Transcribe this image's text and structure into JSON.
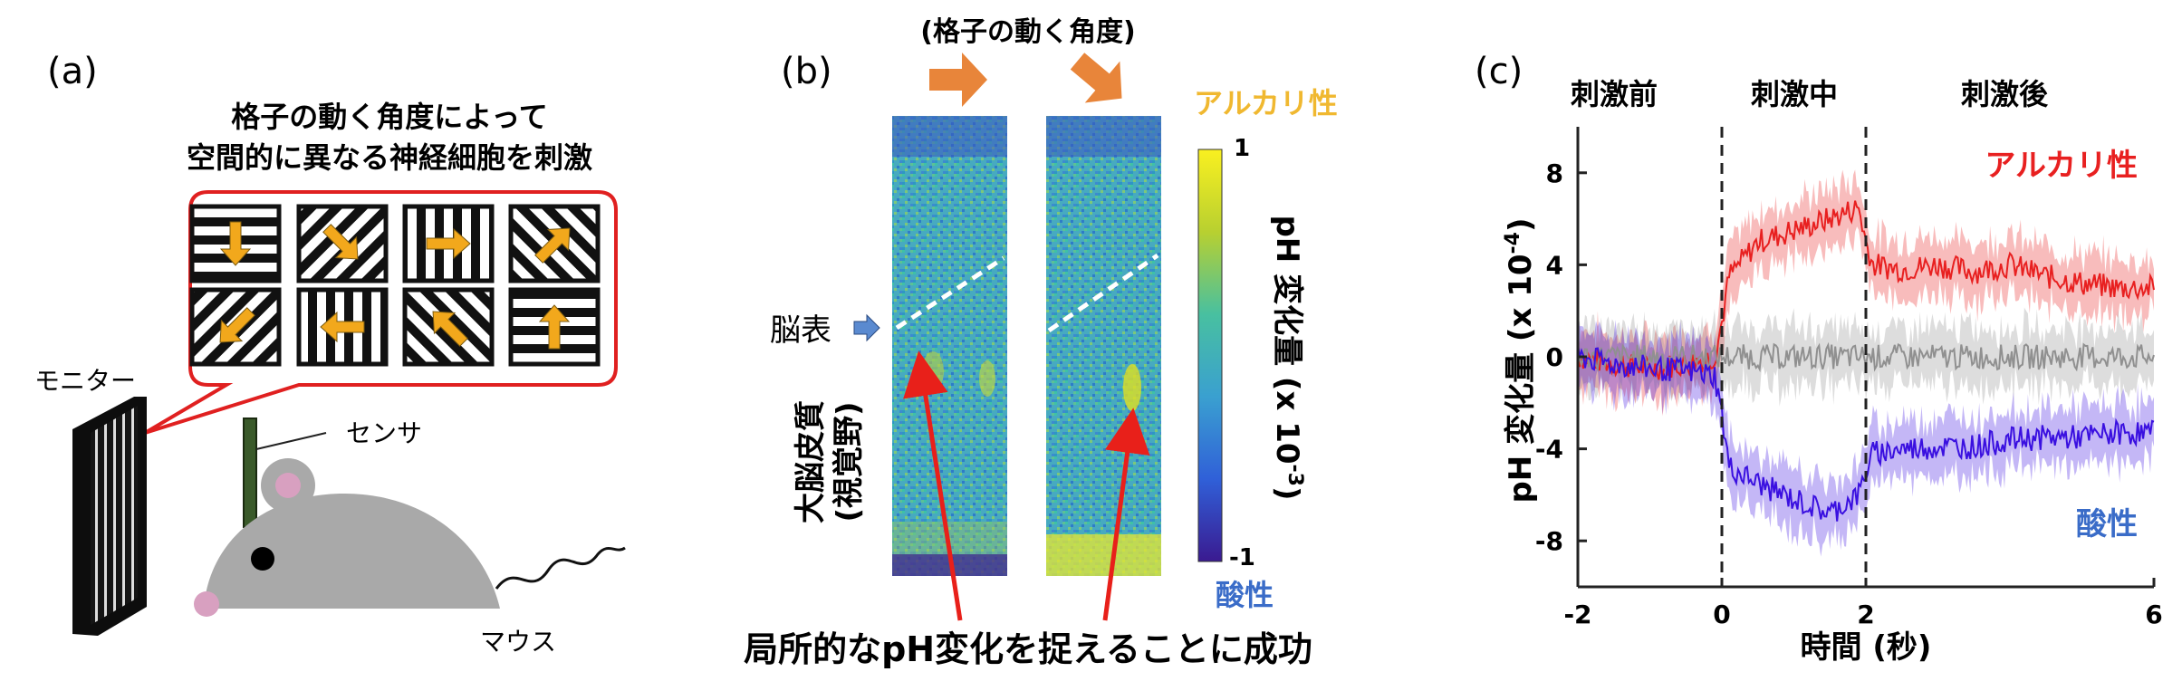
{
  "panel_a": {
    "letter": "(a)",
    "caption_line1": "格子の動く角度によって",
    "caption_line2": "空間的に異なる神経細胞を刺激",
    "monitor_label": "モニター",
    "sensor_label": "センサ",
    "mouse_label": "マウス",
    "grating_arrow_directions": [
      "down",
      "down-right",
      "right",
      "up-right",
      "down-left",
      "left",
      "up-left",
      "up"
    ],
    "colors": {
      "arrow": "#f2a81c",
      "bubble_border": "#e02020",
      "mouse_body": "#a9a9a9",
      "mouse_pink": "#d8a0c0",
      "sensor": "#3a5a2a"
    }
  },
  "panel_b": {
    "letter": "(b)",
    "header": "(格子の動く角度)",
    "alkaline_label": "アルカリ性",
    "acid_label": "酸性",
    "colorbar_top": "1",
    "colorbar_bottom": "-1",
    "colorbar_title": "pH 変化量 (x 10",
    "colorbar_exp": "-3",
    "colorbar_close": ")",
    "brain_surface_label": "脳表",
    "cortex_label_line1": "大脳皮質",
    "cortex_label_line2": "(視覚野)",
    "bottom_caption": "局所的なpH変化を捉えることに成功",
    "colors": {
      "direction_arrow": "#e8853a",
      "alkaline": "#f0b830",
      "acid": "#3a6cc8",
      "pointer": "#e8201a",
      "surface_arrow": "#5a8ad0"
    }
  },
  "panel_c": {
    "letter": "(c)",
    "phase_before": "刺激前",
    "phase_during": "刺激中",
    "phase_after": "刺激後",
    "alkaline_label": "アルカリ性",
    "acid_label": "酸性",
    "colors": {
      "alkaline": "#e82020",
      "acid": "#3a10e0",
      "control": "#909090",
      "acid_label": "#3a6cc8"
    }
  },
  "chart_data": {
    "type": "line",
    "xlabel": "時間 (秒)",
    "ylabel": "pH 変化量 (x 10",
    "ylabel_exp": "-4",
    "ylabel_close": ")",
    "xlim": [
      -2,
      6
    ],
    "ylim": [
      -10,
      10
    ],
    "x_ticks": [
      -2,
      0,
      2,
      6
    ],
    "y_ticks": [
      8,
      4,
      0,
      -4,
      -8
    ],
    "stimulus_lines": [
      0,
      2
    ],
    "series": [
      {
        "name": "アルカリ性",
        "color": "#e82020",
        "x": [
          -2,
          -1.5,
          -1,
          -0.5,
          -0.1,
          0,
          0.1,
          0.5,
          1,
          1.5,
          1.9,
          2,
          2.1,
          2.5,
          3,
          3.5,
          4,
          4.5,
          5,
          5.5,
          6
        ],
        "y": [
          0,
          -0.3,
          -0.5,
          -0.3,
          0,
          1.5,
          3.5,
          5,
          5.5,
          6,
          6.5,
          5,
          4,
          3.8,
          4,
          3.7,
          4,
          3.5,
          3.2,
          3,
          3
        ]
      },
      {
        "name": "",
        "color": "#909090",
        "x": [
          -2,
          -1,
          0,
          1,
          2,
          3,
          4,
          5,
          6
        ],
        "y": [
          0,
          0,
          0,
          0,
          0,
          0,
          0,
          0,
          0
        ]
      },
      {
        "name": "酸性",
        "color": "#3a10e0",
        "x": [
          -2,
          -1.5,
          -1,
          -0.5,
          -0.1,
          0,
          0.1,
          0.5,
          1,
          1.5,
          1.9,
          2,
          2.1,
          2.5,
          3,
          3.5,
          4,
          4.5,
          5,
          5.5,
          6
        ],
        "y": [
          0,
          -0.3,
          -0.5,
          -0.6,
          -0.8,
          -2.5,
          -4.8,
          -5.5,
          -6.2,
          -6.8,
          -6.0,
          -5.0,
          -4.2,
          -4.0,
          -3.9,
          -3.9,
          -3.6,
          -3.5,
          -3.5,
          -3.3,
          -3.3
        ]
      }
    ]
  }
}
